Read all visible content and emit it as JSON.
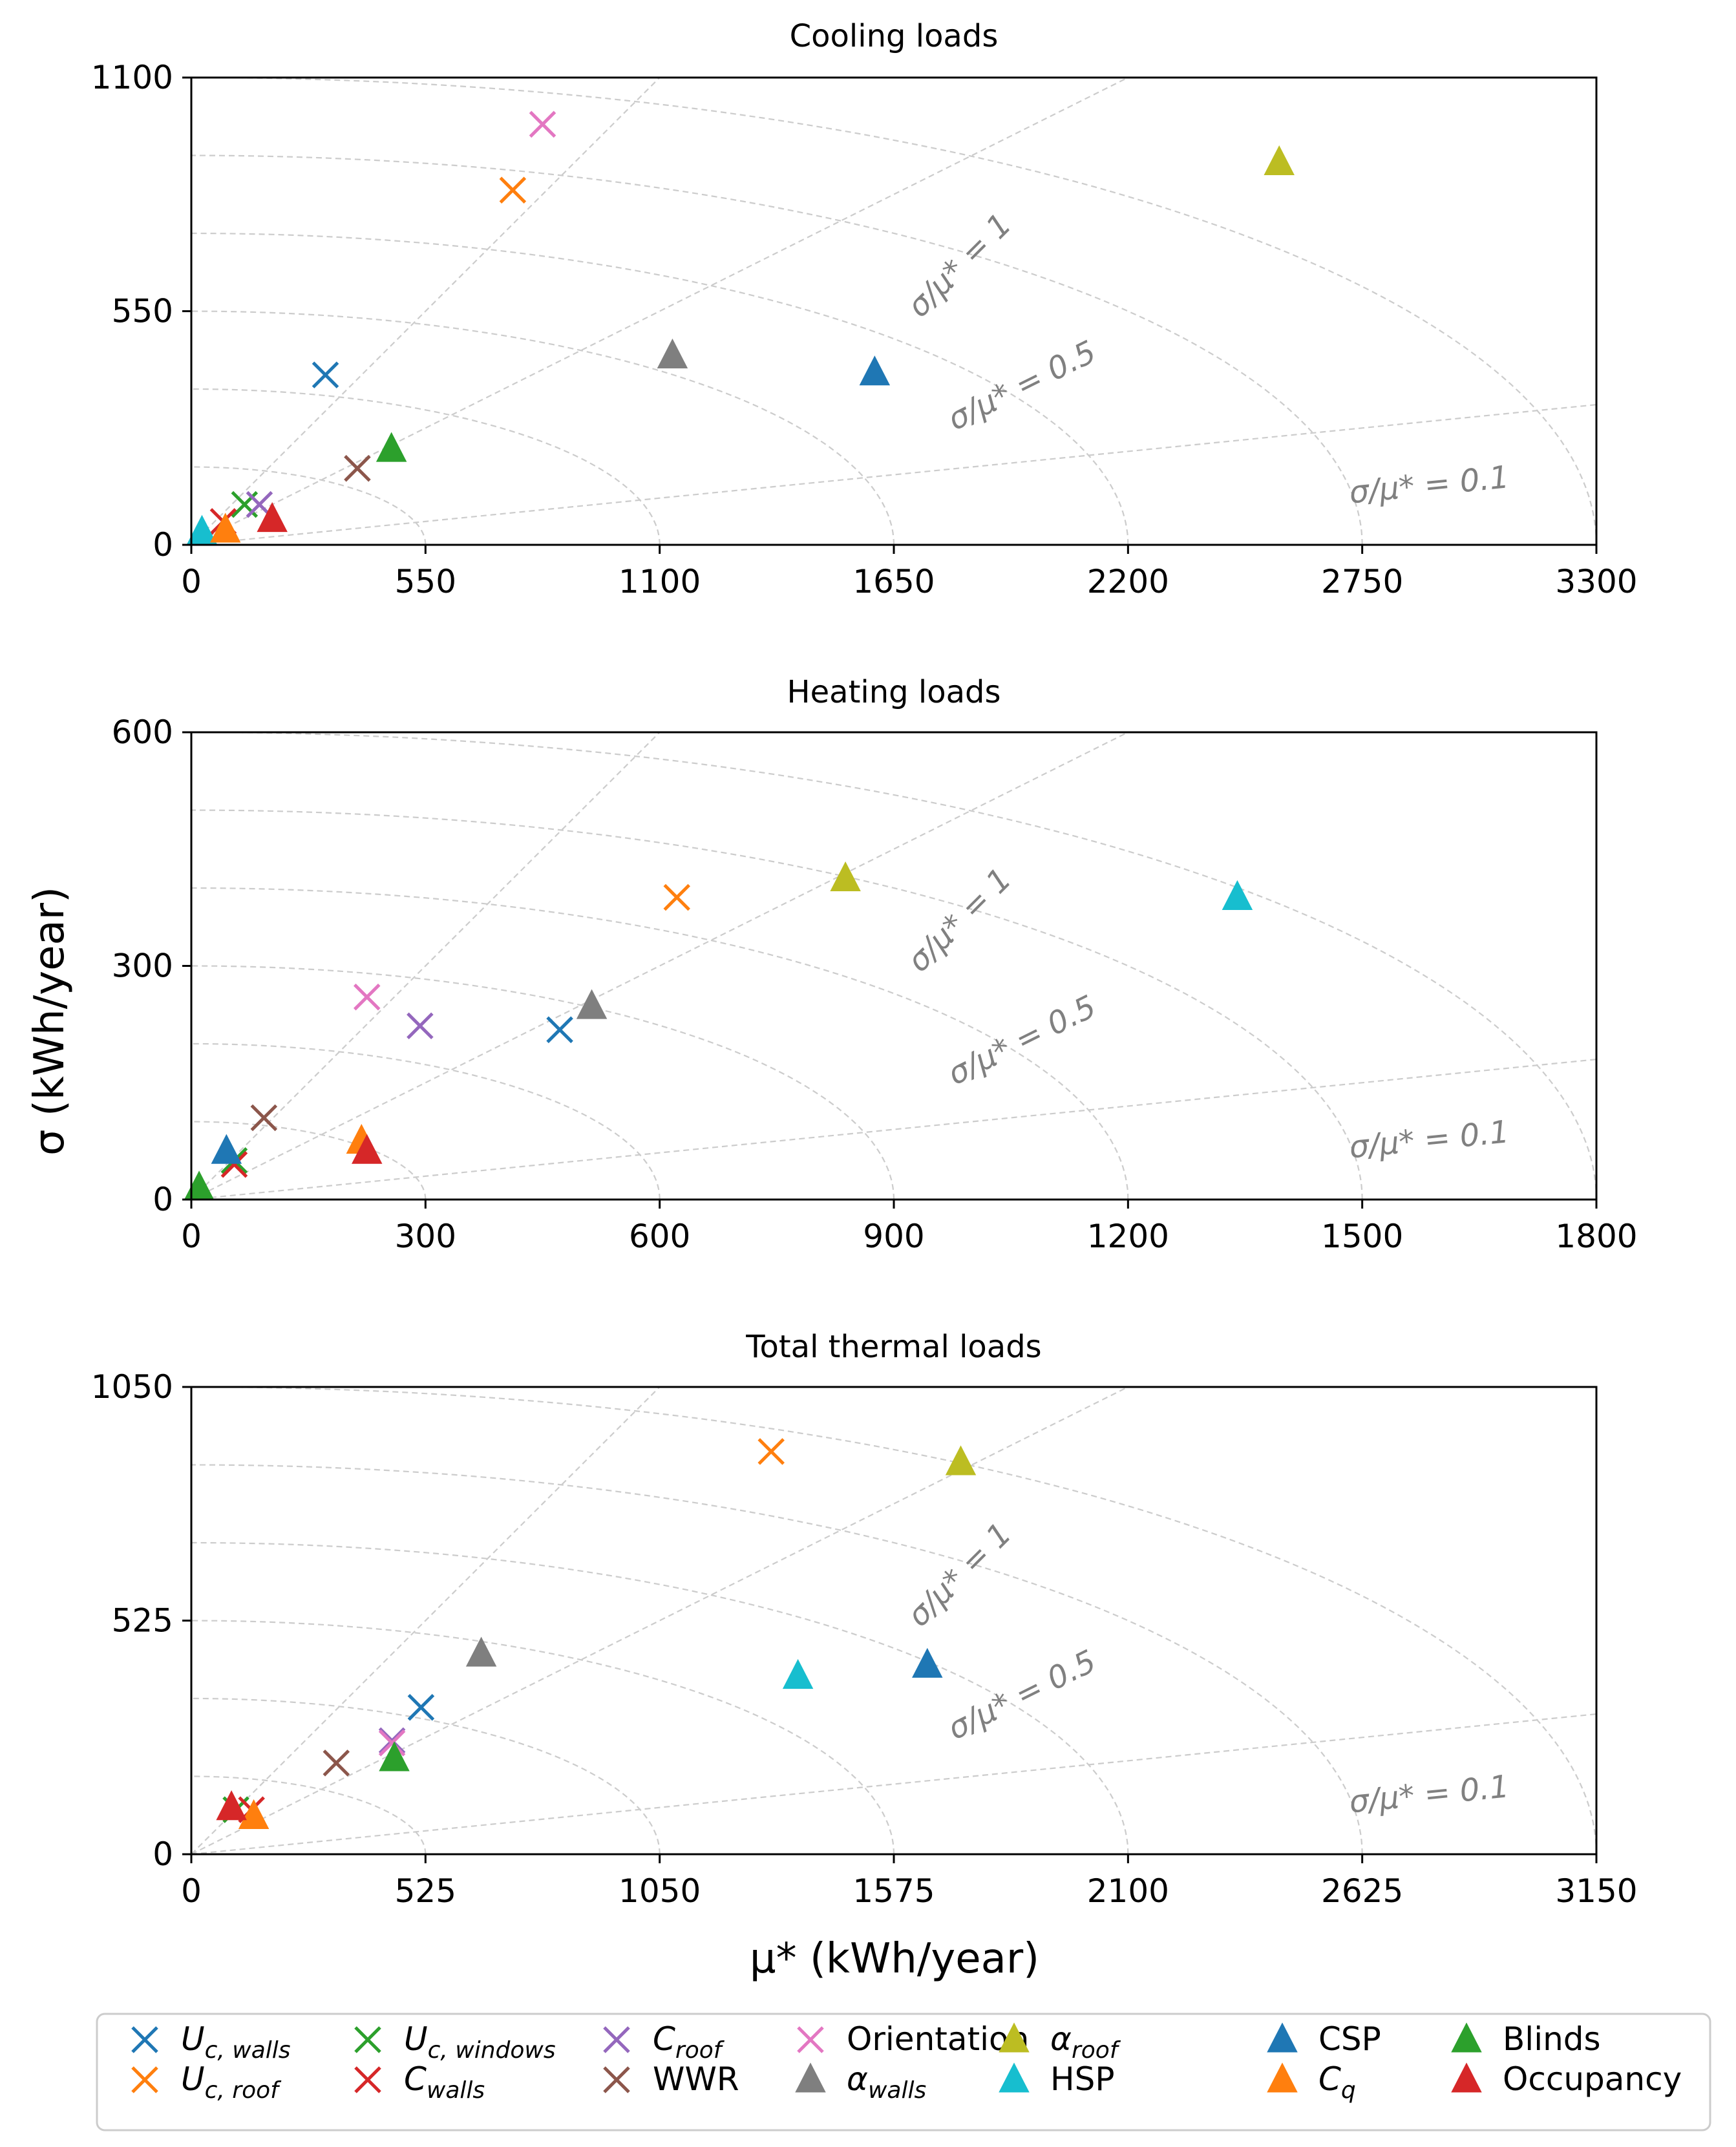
{
  "chart_data": [
    {
      "type": "scatter",
      "title": "Cooling loads",
      "xlabel": "",
      "ylabel": "",
      "xlim": [
        0,
        3300
      ],
      "ylim": [
        0,
        1100
      ],
      "xticks": [
        "0",
        "550",
        "1100",
        "1650",
        "2200",
        "2750",
        "3300"
      ],
      "yticks": [
        "0",
        "550",
        "1100"
      ],
      "ratio_lines": [
        "σ/μ* = 1",
        "σ/μ* = 0.5",
        "σ/μ* = 0.1"
      ],
      "points": [
        {
          "param": "Uc,walls",
          "mu": 315,
          "sigma": 400
        },
        {
          "param": "Uc,roof",
          "mu": 755,
          "sigma": 835
        },
        {
          "param": "Uc,windows",
          "mu": 125,
          "sigma": 95
        },
        {
          "param": "Cwalls",
          "mu": 75,
          "sigma": 55
        },
        {
          "param": "Croof",
          "mu": 160,
          "sigma": 95
        },
        {
          "param": "WWR",
          "mu": 390,
          "sigma": 180
        },
        {
          "param": "Orientation",
          "mu": 825,
          "sigma": 990
        },
        {
          "param": "αwalls",
          "mu": 1130,
          "sigma": 445
        },
        {
          "param": "αroof",
          "mu": 2555,
          "sigma": 900
        },
        {
          "param": "HSP",
          "mu": 25,
          "sigma": 30
        },
        {
          "param": "CSP",
          "mu": 1605,
          "sigma": 405
        },
        {
          "param": "Cq",
          "mu": 80,
          "sigma": 35
        },
        {
          "param": "Blinds",
          "mu": 470,
          "sigma": 225
        },
        {
          "param": "Occupancy",
          "mu": 190,
          "sigma": 60
        }
      ]
    },
    {
      "type": "scatter",
      "title": "Heating loads",
      "xlabel": "",
      "ylabel": "σ (kWh/year)",
      "xlim": [
        0,
        1800
      ],
      "ylim": [
        0,
        600
      ],
      "xticks": [
        "0",
        "300",
        "600",
        "900",
        "1200",
        "1500",
        "1800"
      ],
      "yticks": [
        "0",
        "300",
        "600"
      ],
      "ratio_lines": [
        "σ/μ* = 1",
        "σ/μ* = 0.5",
        "σ/μ* = 0.1"
      ],
      "points": [
        {
          "param": "Uc,walls",
          "mu": 472,
          "sigma": 218
        },
        {
          "param": "Uc,roof",
          "mu": 622,
          "sigma": 388
        },
        {
          "param": "Uc,windows",
          "mu": 55,
          "sigma": 50
        },
        {
          "param": "Cwalls",
          "mu": 55,
          "sigma": 45
        },
        {
          "param": "Croof",
          "mu": 293,
          "sigma": 223
        },
        {
          "param": "WWR",
          "mu": 93,
          "sigma": 105
        },
        {
          "param": "Orientation",
          "mu": 225,
          "sigma": 260
        },
        {
          "param": "αwalls",
          "mu": 513,
          "sigma": 248
        },
        {
          "param": "αroof",
          "mu": 838,
          "sigma": 412
        },
        {
          "param": "HSP",
          "mu": 1340,
          "sigma": 388
        },
        {
          "param": "CSP",
          "mu": 45,
          "sigma": 62
        },
        {
          "param": "Cq",
          "mu": 218,
          "sigma": 75
        },
        {
          "param": "Blinds",
          "mu": 10,
          "sigma": 15
        },
        {
          "param": "Occupancy",
          "mu": 225,
          "sigma": 62
        }
      ]
    },
    {
      "type": "scatter",
      "title": "Total thermal loads",
      "xlabel": "μ* (kWh/year)",
      "ylabel": "",
      "xlim": [
        0,
        3150
      ],
      "ylim": [
        0,
        1050
      ],
      "xticks": [
        "0",
        "525",
        "1050",
        "1575",
        "2100",
        "2625",
        "3150"
      ],
      "yticks": [
        "0",
        "525",
        "1050"
      ],
      "ratio_lines": [
        "σ/μ* = 1",
        "σ/μ* = 0.5",
        "σ/μ* = 0.1"
      ],
      "points": [
        {
          "param": "Uc,walls",
          "mu": 515,
          "sigma": 330
        },
        {
          "param": "Uc,roof",
          "mu": 1300,
          "sigma": 905
        },
        {
          "param": "Uc,windows",
          "mu": 100,
          "sigma": 100
        },
        {
          "param": "Cwalls",
          "mu": 135,
          "sigma": 100
        },
        {
          "param": "Croof",
          "mu": 450,
          "sigma": 255
        },
        {
          "param": "WWR",
          "mu": 325,
          "sigma": 205
        },
        {
          "param": "Orientation",
          "mu": 450,
          "sigma": 250
        },
        {
          "param": "αwalls",
          "mu": 650,
          "sigma": 450
        },
        {
          "param": "αroof",
          "mu": 1725,
          "sigma": 880
        },
        {
          "param": "HSP",
          "mu": 1360,
          "sigma": 400
        },
        {
          "param": "CSP",
          "mu": 1650,
          "sigma": 425
        },
        {
          "param": "Cq",
          "mu": 140,
          "sigma": 85
        },
        {
          "param": "Blinds",
          "mu": 455,
          "sigma": 215
        },
        {
          "param": "Occupancy",
          "mu": 90,
          "sigma": 105
        }
      ]
    }
  ],
  "legend": [
    {
      "key": "Uc,walls",
      "main": "U",
      "sub": "c, walls",
      "marker": "x",
      "color": "#1f77b4"
    },
    {
      "key": "Uc,roof",
      "main": "U",
      "sub": "c, roof",
      "marker": "x",
      "color": "#ff7f0e"
    },
    {
      "key": "Uc,windows",
      "main": "U",
      "sub": "c, windows",
      "marker": "x",
      "color": "#2ca02c"
    },
    {
      "key": "Cwalls",
      "main": "C",
      "sub": "walls",
      "marker": "x",
      "color": "#d62728"
    },
    {
      "key": "Croof",
      "main": "C",
      "sub": "roof",
      "marker": "x",
      "color": "#9467bd"
    },
    {
      "key": "WWR",
      "main": "WWR",
      "sub": "",
      "marker": "x",
      "color": "#8c564b"
    },
    {
      "key": "Orientation",
      "main": "Orientation",
      "sub": "",
      "marker": "x",
      "color": "#e377c2"
    },
    {
      "key": "αwalls",
      "main": "α",
      "sub": "walls",
      "marker": "triangle",
      "color": "#7f7f7f"
    },
    {
      "key": "αroof",
      "main": "α",
      "sub": "roof",
      "marker": "triangle",
      "color": "#bcbd22"
    },
    {
      "key": "HSP",
      "main": "HSP",
      "sub": "",
      "marker": "triangle",
      "color": "#17becf"
    },
    {
      "key": "CSP",
      "main": "CSP",
      "sub": "",
      "marker": "triangle",
      "color": "#1f77b4"
    },
    {
      "key": "Cq",
      "main": "C",
      "sub": "q",
      "marker": "triangle",
      "color": "#ff7f0e"
    },
    {
      "key": "Blinds",
      "main": "Blinds",
      "sub": "",
      "marker": "triangle",
      "color": "#2ca02c"
    },
    {
      "key": "Occupancy",
      "main": "Occupancy",
      "sub": "",
      "marker": "triangle",
      "color": "#d62728"
    }
  ]
}
